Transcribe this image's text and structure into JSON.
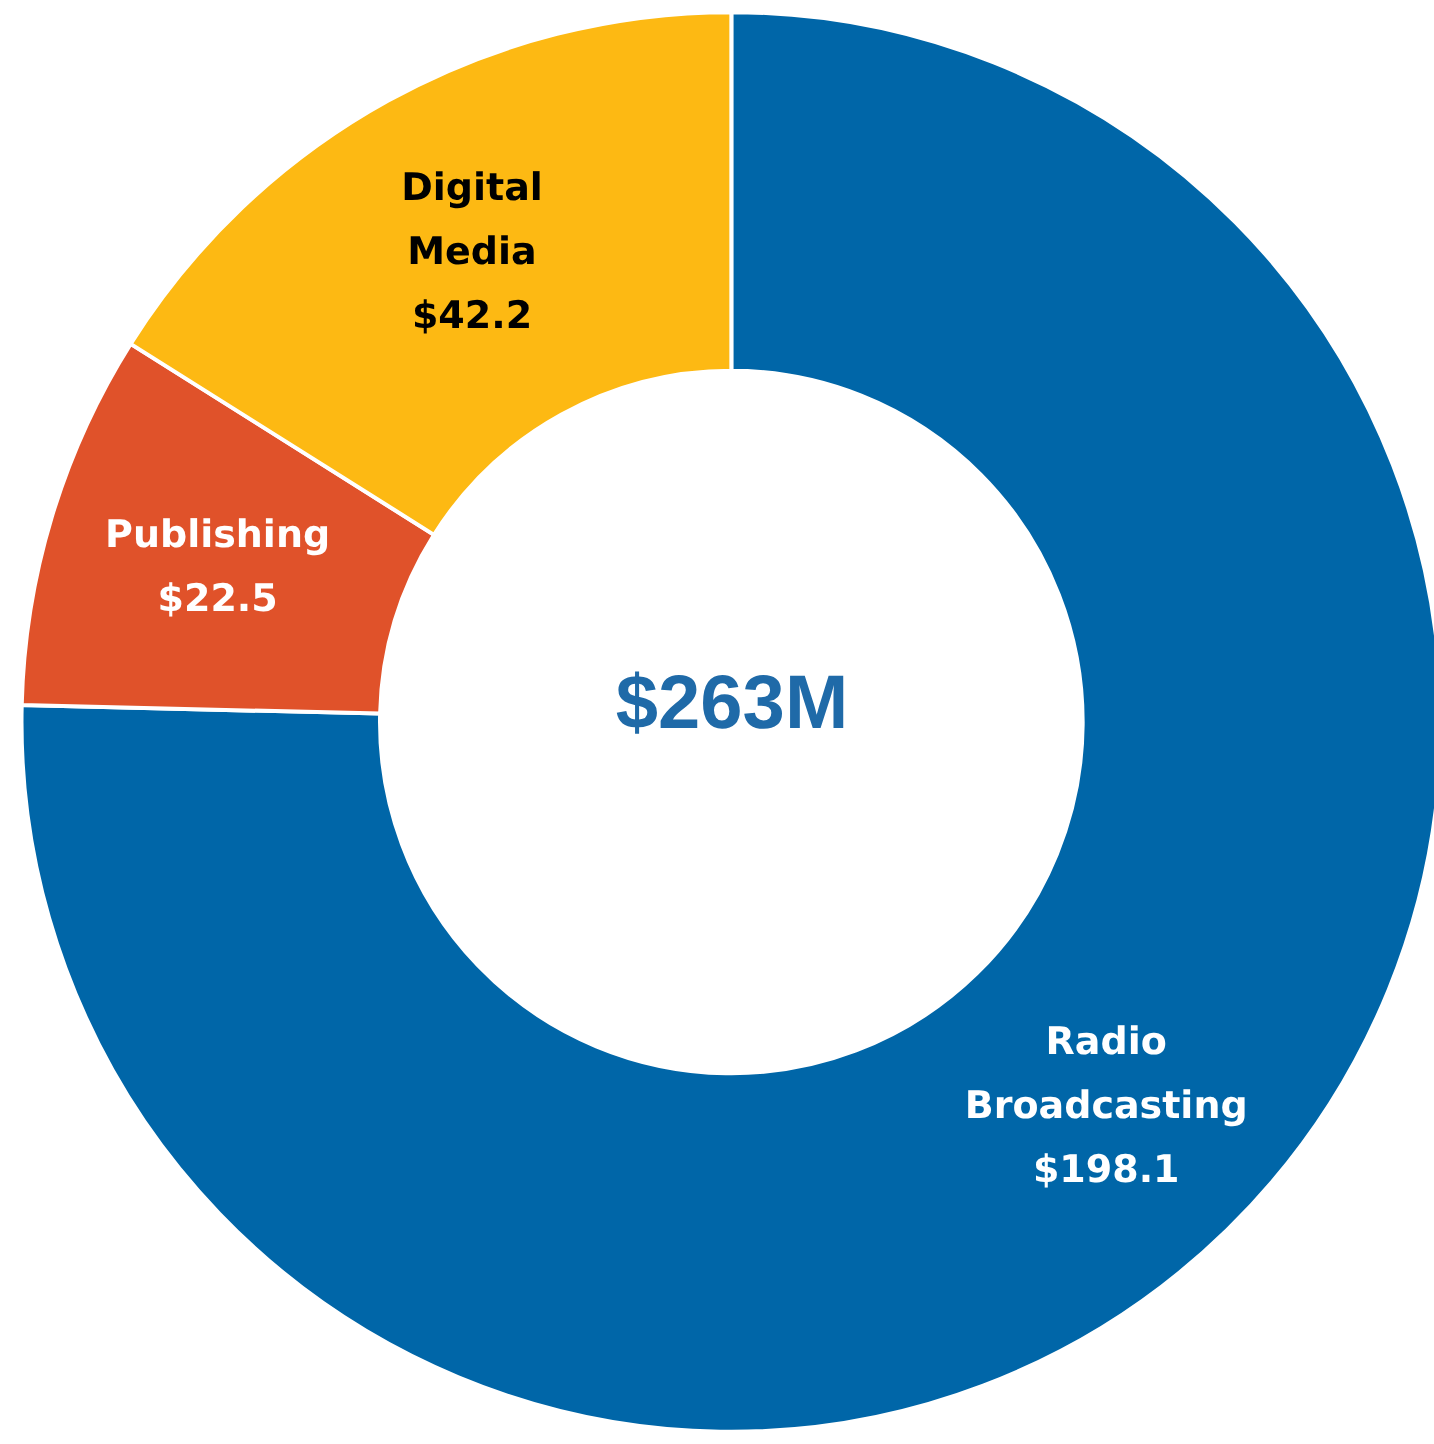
{
  "chart_data": {
    "type": "donut",
    "categories": [
      "Radio Broadcasting",
      "Publishing",
      "Digital Media"
    ],
    "values": [
      198.1,
      22.5,
      42.2
    ],
    "value_labels": [
      "$198.1",
      "$22.5",
      "$42.2"
    ],
    "colors": [
      "#0066a8",
      "#e0522a",
      "#fdb913"
    ],
    "annotations": [
      "$263M"
    ],
    "legend": false
  }
}
